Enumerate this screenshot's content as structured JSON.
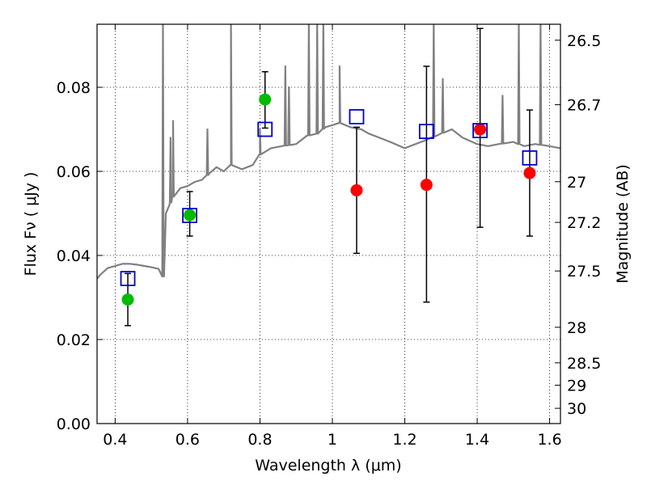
{
  "chart_data": {
    "type": "scatter",
    "xlabel": "Wavelength  λ (μm)",
    "ylabel": "Flux  Fν  ( μJy )",
    "y2label": "Magnitude (AB)",
    "xlim": [
      0.35,
      1.63
    ],
    "ylim": [
      0.0,
      0.095
    ],
    "xticks": [
      {
        "value": 0.4,
        "label": "0.4"
      },
      {
        "value": 0.6,
        "label": "0.6"
      },
      {
        "value": 0.8,
        "label": "0.8"
      },
      {
        "value": 1.0,
        "label": "1"
      },
      {
        "value": 1.2,
        "label": "1.2"
      },
      {
        "value": 1.4,
        "label": "1.4"
      },
      {
        "value": 1.6,
        "label": "1.6"
      }
    ],
    "yticks": [
      {
        "value": 0.0,
        "label": "0.00"
      },
      {
        "value": 0.02,
        "label": "0.02"
      },
      {
        "value": 0.04,
        "label": "0.04"
      },
      {
        "value": 0.06,
        "label": "0.06"
      },
      {
        "value": 0.08,
        "label": "0.08"
      }
    ],
    "y2ticks": [
      {
        "label": "26.5"
      },
      {
        "label": "26.7"
      },
      {
        "label": "27"
      },
      {
        "label": "27.2"
      },
      {
        "label": "27.5"
      },
      {
        "label": "28"
      },
      {
        "label": "28.5"
      },
      {
        "label": "29"
      },
      {
        "label": "30"
      }
    ],
    "grid": true,
    "colors": {
      "sed": "#808080",
      "detection": "#00bb00",
      "measured": "#ff0000",
      "model": "#0000cc",
      "errorbar": "#000000"
    },
    "sed_model": {
      "x": [
        0.35,
        0.36,
        0.38,
        0.4,
        0.42,
        0.44,
        0.46,
        0.48,
        0.5,
        0.52,
        0.53,
        0.535,
        0.54,
        0.55,
        0.56,
        0.58,
        0.6,
        0.62,
        0.64,
        0.66,
        0.68,
        0.7,
        0.72,
        0.75,
        0.78,
        0.8,
        0.83,
        0.86,
        0.9,
        0.93,
        0.96,
        0.98,
        1.0,
        1.02,
        1.05,
        1.08,
        1.1,
        1.13,
        1.16,
        1.2,
        1.23,
        1.26,
        1.3,
        1.33,
        1.36,
        1.4,
        1.43,
        1.46,
        1.5,
        1.53,
        1.56,
        1.6,
        1.63
      ],
      "y": [
        0.0345,
        0.0355,
        0.037,
        0.0375,
        0.038,
        0.038,
        0.0378,
        0.0375,
        0.0372,
        0.0368,
        0.035,
        0.035,
        0.05,
        0.052,
        0.054,
        0.056,
        0.0565,
        0.0575,
        0.058,
        0.0595,
        0.061,
        0.06,
        0.0615,
        0.0605,
        0.0615,
        0.064,
        0.0655,
        0.066,
        0.0665,
        0.0685,
        0.069,
        0.0705,
        0.071,
        0.0715,
        0.0705,
        0.07,
        0.069,
        0.068,
        0.067,
        0.0655,
        0.0665,
        0.0675,
        0.069,
        0.07,
        0.068,
        0.0665,
        0.066,
        0.0665,
        0.067,
        0.066,
        0.0665,
        0.066,
        0.0655
      ],
      "emission_lines": [
        {
          "x": 0.532,
          "y": 0.095
        },
        {
          "x": 0.553,
          "y": 0.068
        },
        {
          "x": 0.56,
          "y": 0.072
        },
        {
          "x": 0.655,
          "y": 0.07
        },
        {
          "x": 0.72,
          "y": 0.095
        },
        {
          "x": 0.8,
          "y": 0.07
        },
        {
          "x": 0.87,
          "y": 0.085
        },
        {
          "x": 0.88,
          "y": 0.08
        },
        {
          "x": 0.935,
          "y": 0.095
        },
        {
          "x": 0.958,
          "y": 0.095
        },
        {
          "x": 0.975,
          "y": 0.095
        },
        {
          "x": 1.02,
          "y": 0.085
        },
        {
          "x": 1.28,
          "y": 0.095
        },
        {
          "x": 1.305,
          "y": 0.082
        },
        {
          "x": 1.47,
          "y": 0.078
        },
        {
          "x": 1.515,
          "y": 0.095
        },
        {
          "x": 1.575,
          "y": 0.095
        }
      ]
    },
    "series": [
      {
        "marker": "circle",
        "color_key": "detection",
        "points": [
          {
            "x": 0.435,
            "y": 0.0295,
            "err": [
              0.0233,
              0.0357
            ]
          },
          {
            "x": 0.606,
            "y": 0.0496,
            "err": [
              0.0446,
              0.0552
            ]
          },
          {
            "x": 0.814,
            "y": 0.0771,
            "err": [
              0.0703,
              0.0837
            ]
          }
        ]
      },
      {
        "marker": "circle",
        "color_key": "measured",
        "points": [
          {
            "x": 1.067,
            "y": 0.0555,
            "err": [
              0.0405,
              0.0705
            ]
          },
          {
            "x": 1.26,
            "y": 0.0568,
            "err": [
              0.0289,
              0.085
            ]
          },
          {
            "x": 1.408,
            "y": 0.07,
            "err": [
              0.0467,
              0.094
            ]
          },
          {
            "x": 1.545,
            "y": 0.0596,
            "err": [
              0.0446,
              0.0746
            ]
          }
        ]
      },
      {
        "marker": "square",
        "color_key": "model",
        "points": [
          {
            "x": 0.435,
            "y": 0.0345
          },
          {
            "x": 0.606,
            "y": 0.0495
          },
          {
            "x": 0.814,
            "y": 0.07
          },
          {
            "x": 1.067,
            "y": 0.073
          },
          {
            "x": 1.26,
            "y": 0.0695
          },
          {
            "x": 1.408,
            "y": 0.0697
          },
          {
            "x": 1.545,
            "y": 0.0632
          }
        ]
      }
    ]
  }
}
